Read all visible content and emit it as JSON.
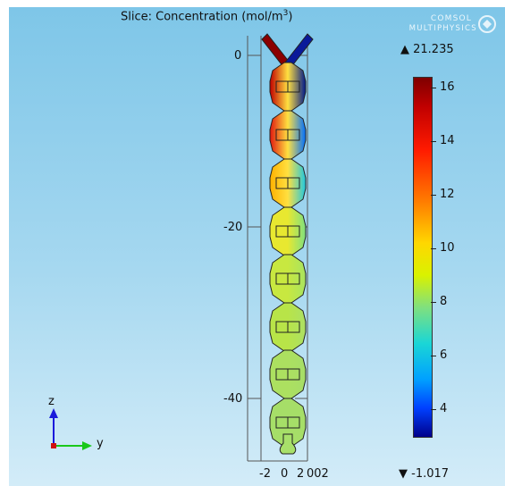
{
  "plot": {
    "title_prefix": "Slice: Concentration (mol/m",
    "title_exp": "3",
    "title_suffix": ")"
  },
  "logo": {
    "line1": "COMSOL",
    "line2": "MULTIPHYSICS",
    "mark": "®"
  },
  "colorbar": {
    "max_label": "▲ 21.235",
    "min_label": "▼ -1.017",
    "ticks": [
      "16",
      "14",
      "12",
      "10",
      "8",
      "6",
      "4"
    ],
    "tick_values": [
      16,
      14,
      12,
      10,
      8,
      6,
      4
    ],
    "range": [
      3,
      16.4
    ],
    "colors": [
      "#7f0000",
      "#ff1a00",
      "#ff8000",
      "#ffd700",
      "#7fe07f",
      "#1ad6d6",
      "#0040ff",
      "#00008b"
    ]
  },
  "axes": {
    "z_ticks": [
      "0",
      "-20",
      "-40"
    ],
    "y_ticks": [
      "-2",
      "0",
      "2",
      "002"
    ]
  },
  "triad": {
    "z_label": "z",
    "y_label": "y",
    "z_color": "#1a1adb",
    "y_color": "#19c819",
    "x_color": "#d01010"
  }
}
